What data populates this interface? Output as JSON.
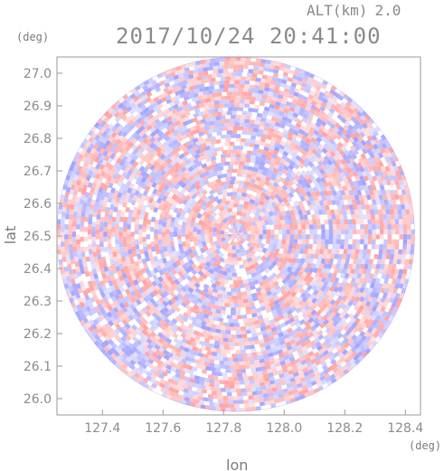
{
  "chart_data": {
    "type": "heatmap",
    "title": "2017/10/24 20:41:00",
    "subtitle_label": "ALT(km)",
    "subtitle_value": "2.0",
    "xlabel": "lon",
    "ylabel": "lat",
    "x_unit": "(deg)",
    "y_unit": "(deg)",
    "xlim": [
      127.25,
      128.45
    ],
    "ylim": [
      25.95,
      27.05
    ],
    "x_ticks": [
      "127.4",
      "127.6",
      "127.8",
      "128.0",
      "128.2",
      "128.4"
    ],
    "y_ticks": [
      "26.0",
      "26.1",
      "26.2",
      "26.3",
      "26.4",
      "26.5",
      "26.6",
      "26.7",
      "26.8",
      "26.9",
      "27.0"
    ],
    "radar_center": {
      "lon": 127.84,
      "lat": 26.505
    },
    "radar_radius_deg_lat": 0.545,
    "colors": {
      "positive": "#ff8c8c",
      "negative": "#8c8cff",
      "neutral": "#ffffff"
    },
    "grid": false
  }
}
